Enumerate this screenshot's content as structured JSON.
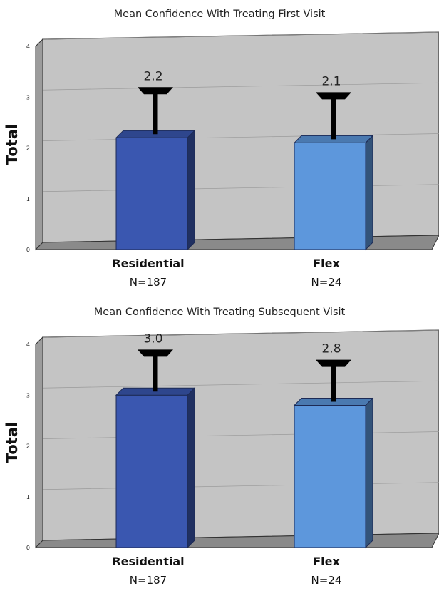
{
  "chart_data": [
    {
      "type": "bar",
      "title": "Mean Confidence With Treating First Visit",
      "ylabel": "Total",
      "xlabel": "",
      "ylim": [
        0,
        4
      ],
      "yticks": [
        "0",
        "1",
        "2",
        "3",
        "4"
      ],
      "categories": [
        "Residential",
        "Flex"
      ],
      "sample_sizes": [
        "N=187",
        "N=24"
      ],
      "values": [
        2.2,
        2.1
      ],
      "value_labels": [
        "2.2",
        "2.1"
      ],
      "error_upper": [
        3.0,
        2.9
      ],
      "colors": [
        "#3a57b0",
        "#5d97dc"
      ],
      "grid": true
    },
    {
      "type": "bar",
      "title": "Mean Confidence With Treating Subsequent Visit",
      "ylabel": "Total",
      "xlabel": "",
      "ylim": [
        0,
        4
      ],
      "yticks": [
        "0",
        "1",
        "2",
        "3",
        "4"
      ],
      "categories": [
        "Residential",
        "Flex"
      ],
      "sample_sizes": [
        "N=187",
        "N=24"
      ],
      "values": [
        3.0,
        2.8
      ],
      "value_labels": [
        "3.0",
        "2.8"
      ],
      "error_upper": [
        3.7,
        3.5
      ],
      "colors": [
        "#3a57b0",
        "#5d97dc"
      ],
      "grid": true
    }
  ]
}
